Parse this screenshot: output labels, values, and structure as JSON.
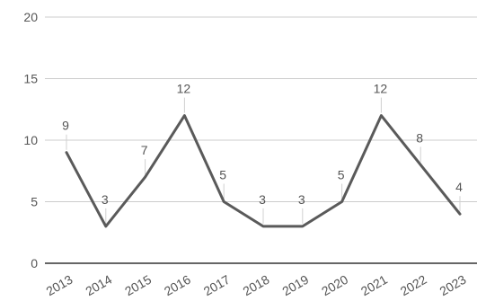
{
  "chart_data": {
    "type": "line",
    "title": "",
    "xlabel": "",
    "ylabel": "",
    "categories": [
      "2013",
      "2014",
      "2015",
      "2016",
      "2017",
      "2018",
      "2019",
      "2020",
      "2021",
      "2022",
      "2023"
    ],
    "series": [
      {
        "values": [
          9,
          3,
          7,
          12,
          5,
          3,
          3,
          5,
          12,
          8,
          4
        ]
      }
    ],
    "ylim": [
      0,
      20
    ],
    "yticks": [
      "0",
      "5",
      "10",
      "15",
      "20"
    ],
    "data_labels": true,
    "grid": true,
    "legend": "none",
    "colors": {
      "line": "#5a5a5a",
      "grid": "#cccccc",
      "axis": "#333333",
      "leader": "#d0d0d0",
      "text": "#555555"
    }
  }
}
